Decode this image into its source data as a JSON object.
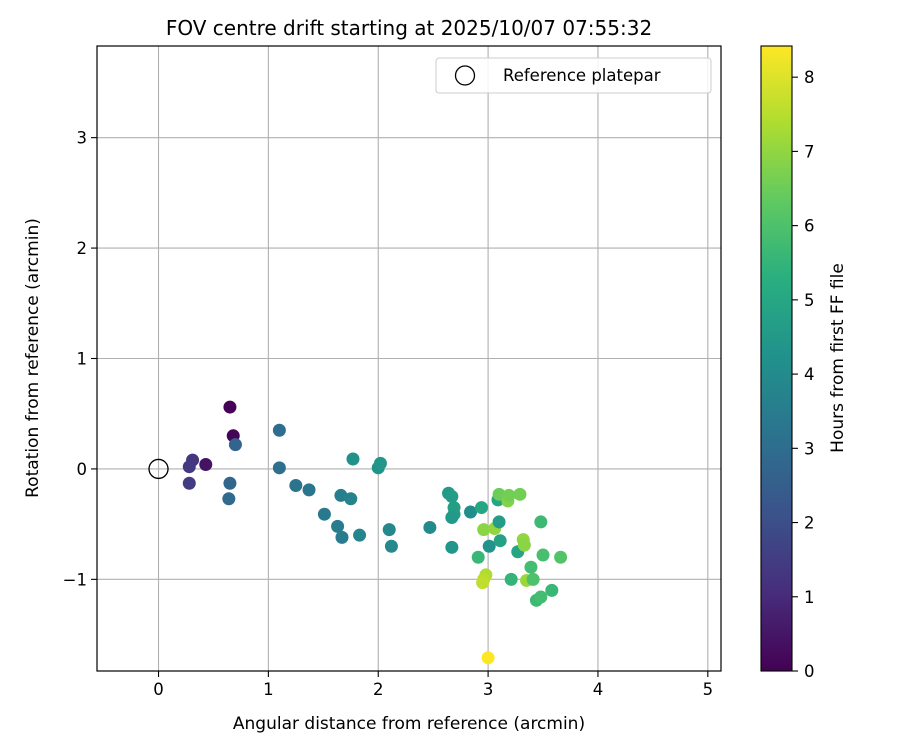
{
  "chart_data": {
    "type": "scatter",
    "title": "FOV centre drift starting at 2025/10/07 07:55:32",
    "xlabel": "Angular distance from reference (arcmin)",
    "ylabel": "Rotation from reference (arcmin)",
    "xlim": [
      -0.56,
      5.12
    ],
    "ylim": [
      -1.83,
      3.83
    ],
    "xticks": [
      0,
      1,
      2,
      3,
      4,
      5
    ],
    "yticks": [
      -1,
      0,
      1,
      2,
      3
    ],
    "ytick_labels": [
      "−1",
      "0",
      "1",
      "2",
      "3"
    ],
    "grid": true,
    "legend": {
      "location": "top-right",
      "entries": [
        "Reference platepar"
      ]
    },
    "reference_point": {
      "x": 0,
      "y": 0
    },
    "colorbar": {
      "label": "Hours from first FF file",
      "range": [
        0,
        8.42
      ],
      "ticks": [
        0,
        1,
        2,
        3,
        4,
        5,
        6,
        7,
        8
      ],
      "colormap": "viridis"
    },
    "points": [
      {
        "x": 0.65,
        "y": 0.56,
        "h": 0.05
      },
      {
        "x": 0.68,
        "y": 0.3,
        "h": 0.1
      },
      {
        "x": 0.43,
        "y": 0.04,
        "h": 0.4
      },
      {
        "x": 0.31,
        "y": 0.08,
        "h": 1.3
      },
      {
        "x": 0.28,
        "y": 0.02,
        "h": 1.4
      },
      {
        "x": 0.28,
        "y": -0.13,
        "h": 1.5
      },
      {
        "x": 0.7,
        "y": 0.22,
        "h": 2.7
      },
      {
        "x": 0.65,
        "y": -0.13,
        "h": 2.8
      },
      {
        "x": 0.64,
        "y": -0.27,
        "h": 2.9
      },
      {
        "x": 1.1,
        "y": 0.35,
        "h": 3.0
      },
      {
        "x": 1.1,
        "y": 0.01,
        "h": 3.1
      },
      {
        "x": 1.25,
        "y": -0.15,
        "h": 3.2
      },
      {
        "x": 1.37,
        "y": -0.19,
        "h": 3.3
      },
      {
        "x": 1.51,
        "y": -0.41,
        "h": 3.4
      },
      {
        "x": 1.63,
        "y": -0.52,
        "h": 3.5
      },
      {
        "x": 1.66,
        "y": -0.24,
        "h": 3.6
      },
      {
        "x": 1.67,
        "y": -0.62,
        "h": 3.5
      },
      {
        "x": 1.75,
        "y": -0.27,
        "h": 3.7
      },
      {
        "x": 1.77,
        "y": 0.09,
        "h": 4.2
      },
      {
        "x": 1.83,
        "y": -0.6,
        "h": 3.8
      },
      {
        "x": 2.0,
        "y": 0.01,
        "h": 4.3
      },
      {
        "x": 2.02,
        "y": 0.05,
        "h": 4.4
      },
      {
        "x": 2.1,
        "y": -0.55,
        "h": 3.9
      },
      {
        "x": 2.12,
        "y": -0.7,
        "h": 3.9
      },
      {
        "x": 2.47,
        "y": -0.53,
        "h": 4.0
      },
      {
        "x": 2.64,
        "y": -0.22,
        "h": 4.5
      },
      {
        "x": 2.67,
        "y": -0.25,
        "h": 4.6
      },
      {
        "x": 2.69,
        "y": -0.35,
        "h": 4.7
      },
      {
        "x": 2.69,
        "y": -0.41,
        "h": 4.6
      },
      {
        "x": 2.67,
        "y": -0.44,
        "h": 4.5
      },
      {
        "x": 2.67,
        "y": -0.71,
        "h": 4.4
      },
      {
        "x": 2.84,
        "y": -0.39,
        "h": 4.1
      },
      {
        "x": 2.94,
        "y": -0.35,
        "h": 5.0
      },
      {
        "x": 2.91,
        "y": -0.8,
        "h": 5.6
      },
      {
        "x": 2.96,
        "y": -0.55,
        "h": 6.9
      },
      {
        "x": 3.01,
        "y": -0.7,
        "h": 4.3
      },
      {
        "x": 3.06,
        "y": -0.54,
        "h": 7.0
      },
      {
        "x": 3.09,
        "y": -0.28,
        "h": 4.9
      },
      {
        "x": 3.1,
        "y": -0.23,
        "h": 6.5
      },
      {
        "x": 3.1,
        "y": -0.48,
        "h": 4.6
      },
      {
        "x": 3.11,
        "y": -0.65,
        "h": 4.8
      },
      {
        "x": 3.18,
        "y": -0.29,
        "h": 6.8
      },
      {
        "x": 3.19,
        "y": -0.24,
        "h": 6.6
      },
      {
        "x": 3.21,
        "y": -1.0,
        "h": 5.5
      },
      {
        "x": 3.27,
        "y": -0.75,
        "h": 4.9
      },
      {
        "x": 3.29,
        "y": -0.23,
        "h": 6.6
      },
      {
        "x": 3.32,
        "y": -0.64,
        "h": 7.0
      },
      {
        "x": 3.33,
        "y": -0.69,
        "h": 6.9
      },
      {
        "x": 3.35,
        "y": -1.01,
        "h": 7.1
      },
      {
        "x": 3.39,
        "y": -0.89,
        "h": 5.8
      },
      {
        "x": 3.41,
        "y": -1.0,
        "h": 6.0
      },
      {
        "x": 3.44,
        "y": -1.19,
        "h": 5.7
      },
      {
        "x": 3.48,
        "y": -1.16,
        "h": 5.8
      },
      {
        "x": 3.48,
        "y": -0.48,
        "h": 5.7
      },
      {
        "x": 3.5,
        "y": -0.78,
        "h": 5.9
      },
      {
        "x": 3.58,
        "y": -1.1,
        "h": 5.6
      },
      {
        "x": 3.66,
        "y": -0.8,
        "h": 6.1
      },
      {
        "x": 2.98,
        "y": -0.96,
        "h": 7.4
      },
      {
        "x": 2.96,
        "y": -1.0,
        "h": 7.5
      },
      {
        "x": 2.95,
        "y": -1.03,
        "h": 7.6
      },
      {
        "x": 3.0,
        "y": -1.71,
        "h": 8.42
      }
    ]
  }
}
